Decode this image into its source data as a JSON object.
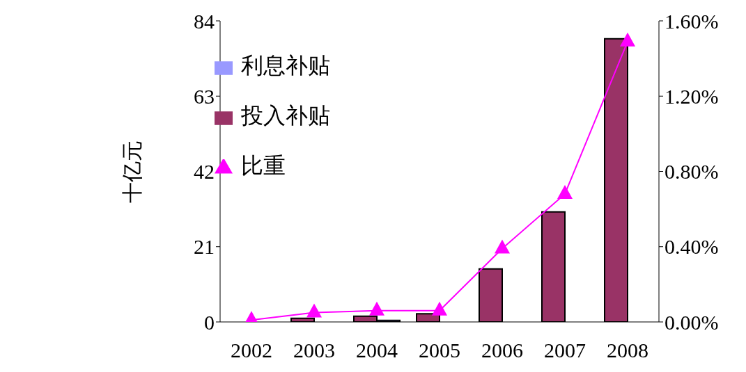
{
  "chart_data": {
    "type": "bar",
    "ylabel": "十亿元",
    "categories": [
      "2002",
      "2003",
      "2004",
      "2005",
      "2006",
      "2007",
      "2008"
    ],
    "series": [
      {
        "name": "投入补贴",
        "color": "#993366",
        "values": [
          0,
          1.0,
          1.6,
          2.3,
          14.8,
          30.7,
          79.0
        ]
      },
      {
        "name": "利息补贴",
        "color": "#9999ff",
        "values": [
          0,
          0,
          0.45,
          0,
          0,
          0,
          0
        ]
      },
      {
        "name": "比重",
        "type": "line",
        "axis": "y2",
        "color": "#ff00ff",
        "values": [
          0.01,
          0.05,
          0.06,
          0.06,
          0.39,
          0.68,
          1.49
        ]
      }
    ],
    "ylim": [
      0,
      84
    ],
    "yticks": [
      0,
      21,
      42,
      63,
      84
    ],
    "y2lim": [
      0,
      1.6
    ],
    "y2ticks": [
      {
        "value": 0,
        "label": "0.00%"
      },
      {
        "value": 0.4,
        "label": "0.40%"
      },
      {
        "value": 0.8,
        "label": "0.80%"
      },
      {
        "value": 1.2,
        "label": "1.20%"
      },
      {
        "value": 1.6,
        "label": "1.60%"
      }
    ],
    "marker": "triangle",
    "grid": false,
    "legend": "top left"
  }
}
